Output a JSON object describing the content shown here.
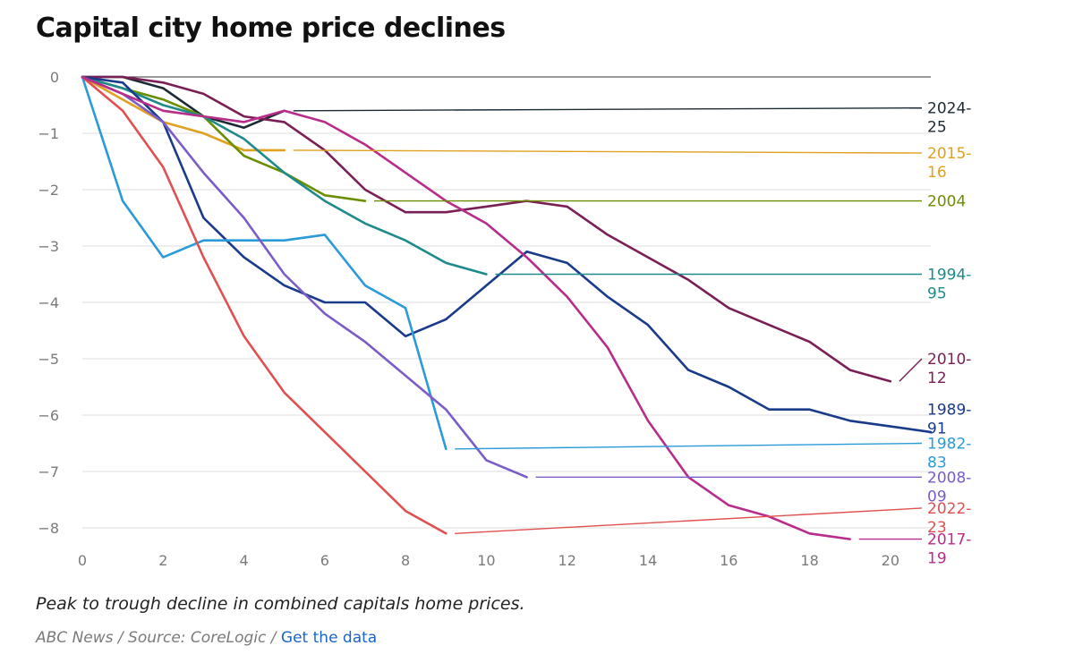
{
  "chart_data": {
    "type": "line",
    "title": "Capital city home price declines",
    "subtitle": "Peak to trough decline in combined capitals home prices.",
    "xlabel": "",
    "ylabel": "",
    "xlim": [
      0,
      21
    ],
    "ylim": [
      -8.4,
      0
    ],
    "xticks": [
      0,
      2,
      4,
      6,
      8,
      10,
      12,
      14,
      16,
      18,
      20
    ],
    "yticks": [
      0,
      -1,
      -2,
      -3,
      -4,
      -5,
      -6,
      -7,
      -8
    ],
    "grid": "horizontal",
    "legend": "direct-labels-right",
    "series": [
      {
        "name": "2024-25",
        "color": "#1b2a33",
        "values": [
          [
            0,
            0
          ],
          [
            1,
            0
          ],
          [
            2,
            -0.2
          ],
          [
            3,
            -0.7
          ],
          [
            4,
            -0.9
          ],
          [
            5,
            -0.6
          ]
        ],
        "label_y": -0.55
      },
      {
        "name": "2015-16",
        "color": "#e0a020",
        "values": [
          [
            0,
            0
          ],
          [
            1,
            -0.4
          ],
          [
            2,
            -0.8
          ],
          [
            3,
            -1.0
          ],
          [
            4,
            -1.3
          ],
          [
            5,
            -1.3
          ]
        ],
        "label_y": -1.35
      },
      {
        "name": "2004",
        "color": "#6b8e00",
        "values": [
          [
            0,
            0
          ],
          [
            1,
            -0.2
          ],
          [
            2,
            -0.4
          ],
          [
            3,
            -0.7
          ],
          [
            4,
            -1.4
          ],
          [
            5,
            -1.7
          ],
          [
            6,
            -2.1
          ],
          [
            7,
            -2.2
          ]
        ],
        "label_y": -2.2
      },
      {
        "name": "1994-95",
        "color": "#1f8a8a",
        "values": [
          [
            0,
            0
          ],
          [
            1,
            -0.2
          ],
          [
            2,
            -0.5
          ],
          [
            3,
            -0.7
          ],
          [
            4,
            -1.1
          ],
          [
            5,
            -1.7
          ],
          [
            6,
            -2.2
          ],
          [
            7,
            -2.6
          ],
          [
            8,
            -2.9
          ],
          [
            9,
            -3.3
          ],
          [
            10,
            -3.5
          ]
        ],
        "label_y": -3.5
      },
      {
        "name": "2010-12",
        "color": "#7a1f55",
        "values": [
          [
            0,
            0
          ],
          [
            1,
            0
          ],
          [
            2,
            -0.1
          ],
          [
            3,
            -0.3
          ],
          [
            4,
            -0.7
          ],
          [
            5,
            -0.8
          ],
          [
            6,
            -1.3
          ],
          [
            7,
            -2.0
          ],
          [
            8,
            -2.4
          ],
          [
            9,
            -2.4
          ],
          [
            10,
            -2.3
          ],
          [
            11,
            -2.2
          ],
          [
            12,
            -2.3
          ],
          [
            13,
            -2.8
          ],
          [
            14,
            -3.2
          ],
          [
            15,
            -3.6
          ],
          [
            16,
            -4.1
          ],
          [
            17,
            -4.4
          ],
          [
            18,
            -4.7
          ],
          [
            19,
            -5.2
          ],
          [
            20,
            -5.4
          ]
        ],
        "label_y": -5.0
      },
      {
        "name": "1989-91",
        "color": "#1a3a8a",
        "values": [
          [
            0,
            0
          ],
          [
            1,
            -0.1
          ],
          [
            2,
            -0.8
          ],
          [
            3,
            -2.5
          ],
          [
            4,
            -3.2
          ],
          [
            5,
            -3.7
          ],
          [
            6,
            -4.0
          ],
          [
            7,
            -4.0
          ],
          [
            8,
            -4.6
          ],
          [
            9,
            -4.3
          ],
          [
            10,
            -3.7
          ],
          [
            11,
            -3.1
          ],
          [
            12,
            -3.3
          ],
          [
            13,
            -3.9
          ],
          [
            14,
            -4.4
          ],
          [
            15,
            -5.2
          ],
          [
            16,
            -5.5
          ],
          [
            17,
            -5.9
          ],
          [
            18,
            -5.9
          ],
          [
            19,
            -6.1
          ],
          [
            20,
            -6.2
          ],
          [
            21,
            -6.3
          ]
        ],
        "label_y": -5.9
      },
      {
        "name": "1982-83",
        "color": "#2a9ad8",
        "values": [
          [
            0,
            0
          ],
          [
            1,
            -2.2
          ],
          [
            2,
            -3.2
          ],
          [
            3,
            -2.9
          ],
          [
            4,
            -2.9
          ],
          [
            5,
            -2.9
          ],
          [
            6,
            -2.8
          ],
          [
            7,
            -3.7
          ],
          [
            8,
            -4.1
          ],
          [
            9,
            -6.6
          ]
        ],
        "label_y": -6.5
      },
      {
        "name": "2008-09",
        "color": "#7b5cc8",
        "values": [
          [
            0,
            0
          ],
          [
            1,
            -0.3
          ],
          [
            2,
            -0.8
          ],
          [
            3,
            -1.7
          ],
          [
            4,
            -2.5
          ],
          [
            5,
            -3.5
          ],
          [
            6,
            -4.2
          ],
          [
            7,
            -4.7
          ],
          [
            8,
            -5.3
          ],
          [
            9,
            -5.9
          ],
          [
            10,
            -6.8
          ],
          [
            11,
            -7.1
          ]
        ],
        "label_y": -7.1
      },
      {
        "name": "2022-23",
        "color": "#e05050",
        "values": [
          [
            0,
            0
          ],
          [
            1,
            -0.6
          ],
          [
            2,
            -1.6
          ],
          [
            3,
            -3.2
          ],
          [
            4,
            -4.6
          ],
          [
            5,
            -5.6
          ],
          [
            6,
            -6.3
          ],
          [
            7,
            -7.0
          ],
          [
            8,
            -7.7
          ],
          [
            9,
            -8.1
          ]
        ],
        "label_y": -7.65
      },
      {
        "name": "2017-19",
        "color": "#b82c8a",
        "values": [
          [
            0,
            0
          ],
          [
            1,
            -0.3
          ],
          [
            2,
            -0.6
          ],
          [
            3,
            -0.7
          ],
          [
            4,
            -0.8
          ],
          [
            5,
            -0.6
          ],
          [
            6,
            -0.8
          ],
          [
            7,
            -1.2
          ],
          [
            8,
            -1.7
          ],
          [
            9,
            -2.2
          ],
          [
            10,
            -2.6
          ],
          [
            11,
            -3.2
          ],
          [
            12,
            -3.9
          ],
          [
            13,
            -4.8
          ],
          [
            14,
            -6.1
          ],
          [
            15,
            -7.1
          ],
          [
            16,
            -7.6
          ],
          [
            17,
            -7.8
          ],
          [
            18,
            -8.1
          ],
          [
            19,
            -8.2
          ]
        ],
        "label_y": -8.2
      }
    ]
  },
  "footer": {
    "publisher": "ABC News / Source: CoreLogic /",
    "link": "Get the data"
  }
}
